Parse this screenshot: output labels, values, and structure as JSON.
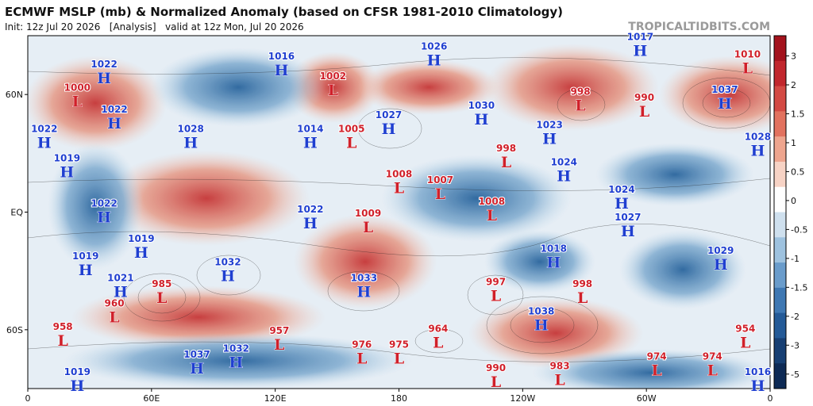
{
  "header": {
    "title": "ECMWF MSLP (mb) & Normalized Anomaly (based on CFSR 1981-2010 Climatology)",
    "init": "Init: 12z Jul 20 2026   [Analysis]   valid at 12z Mon, Jul 20 2026",
    "watermark": "TROPICALTIDBITS.COM"
  },
  "map": {
    "lat_ticks": [
      {
        "value": 60,
        "label": "60N"
      },
      {
        "value": 0,
        "label": "EQ"
      },
      {
        "value": -60,
        "label": "60S"
      }
    ],
    "lon_ticks": [
      {
        "value": 0,
        "label": "0"
      },
      {
        "value": 60,
        "label": "60E"
      },
      {
        "value": 120,
        "label": "120E"
      },
      {
        "value": 180,
        "label": "180"
      },
      {
        "value": 240,
        "label": "120W"
      },
      {
        "value": 300,
        "label": "60W"
      },
      {
        "value": 360,
        "label": "0"
      }
    ],
    "centers": [
      {
        "symbol": "H",
        "pressure": "1022",
        "lon": 37,
        "lat": 69
      },
      {
        "symbol": "L",
        "pressure": "1000",
        "lon": 24,
        "lat": 57
      },
      {
        "symbol": "H",
        "pressure": "1022",
        "lon": 8,
        "lat": 36
      },
      {
        "symbol": "H",
        "pressure": "1022",
        "lon": 42,
        "lat": 46
      },
      {
        "symbol": "H",
        "pressure": "1019",
        "lon": 19,
        "lat": 21
      },
      {
        "symbol": "H",
        "pressure": "1022",
        "lon": 37,
        "lat": -2
      },
      {
        "symbol": "H",
        "pressure": "1019",
        "lon": 28,
        "lat": -29
      },
      {
        "symbol": "H",
        "pressure": "1019",
        "lon": 55,
        "lat": -20
      },
      {
        "symbol": "H",
        "pressure": "1021",
        "lon": 45,
        "lat": -40
      },
      {
        "symbol": "L",
        "pressure": "985",
        "lon": 65,
        "lat": -43
      },
      {
        "symbol": "L",
        "pressure": "958",
        "lon": 17,
        "lat": -65
      },
      {
        "symbol": "L",
        "pressure": "960",
        "lon": 42,
        "lat": -53
      },
      {
        "symbol": "H",
        "pressure": "1028",
        "lon": 79,
        "lat": 36
      },
      {
        "symbol": "H",
        "pressure": "1016",
        "lon": 123,
        "lat": 73
      },
      {
        "symbol": "L",
        "pressure": "1002",
        "lon": 148,
        "lat": 63
      },
      {
        "symbol": "H",
        "pressure": "1032",
        "lon": 97,
        "lat": -32
      },
      {
        "symbol": "H",
        "pressure": "1022",
        "lon": 137,
        "lat": -5
      },
      {
        "symbol": "L",
        "pressure": "1005",
        "lon": 157,
        "lat": 36
      },
      {
        "symbol": "H",
        "pressure": "1014",
        "lon": 137,
        "lat": 36
      },
      {
        "symbol": "H",
        "pressure": "1027",
        "lon": 175,
        "lat": 43
      },
      {
        "symbol": "L",
        "pressure": "1009",
        "lon": 165,
        "lat": -7
      },
      {
        "symbol": "H",
        "pressure": "1033",
        "lon": 163,
        "lat": -40
      },
      {
        "symbol": "L",
        "pressure": "957",
        "lon": 122,
        "lat": -67
      },
      {
        "symbol": "L",
        "pressure": "976",
        "lon": 162,
        "lat": -74
      },
      {
        "symbol": "L",
        "pressure": "975",
        "lon": 180,
        "lat": -74
      },
      {
        "symbol": "H",
        "pressure": "1026",
        "lon": 197,
        "lat": 78
      },
      {
        "symbol": "L",
        "pressure": "1008",
        "lon": 180,
        "lat": 13
      },
      {
        "symbol": "L",
        "pressure": "1007",
        "lon": 200,
        "lat": 10
      },
      {
        "symbol": "L",
        "pressure": "1008",
        "lon": 225,
        "lat": -1
      },
      {
        "symbol": "H",
        "pressure": "1030",
        "lon": 220,
        "lat": 48
      },
      {
        "symbol": "L",
        "pressure": "998",
        "lon": 232,
        "lat": 26
      },
      {
        "symbol": "H",
        "pressure": "1023",
        "lon": 253,
        "lat": 38
      },
      {
        "symbol": "H",
        "pressure": "1024",
        "lon": 260,
        "lat": 19
      },
      {
        "symbol": "L",
        "pressure": "998",
        "lon": 268,
        "lat": 55
      },
      {
        "symbol": "L",
        "pressure": "990",
        "lon": 299,
        "lat": 52
      },
      {
        "symbol": "H",
        "pressure": "1017",
        "lon": 297,
        "lat": 83
      },
      {
        "symbol": "L",
        "pressure": "1010",
        "lon": 349,
        "lat": 74
      },
      {
        "symbol": "H",
        "pressure": "1037",
        "lon": 338,
        "lat": 56
      },
      {
        "symbol": "H",
        "pressure": "1028",
        "lon": 354,
        "lat": 32
      },
      {
        "symbol": "H",
        "pressure": "1024",
        "lon": 288,
        "lat": 5
      },
      {
        "symbol": "H",
        "pressure": "1027",
        "lon": 291,
        "lat": -9
      },
      {
        "symbol": "H",
        "pressure": "1018",
        "lon": 255,
        "lat": -25
      },
      {
        "symbol": "H",
        "pressure": "1029",
        "lon": 336,
        "lat": -26
      },
      {
        "symbol": "L",
        "pressure": "997",
        "lon": 227,
        "lat": -42
      },
      {
        "symbol": "L",
        "pressure": "998",
        "lon": 269,
        "lat": -43
      },
      {
        "symbol": "H",
        "pressure": "1038",
        "lon": 249,
        "lat": -57
      },
      {
        "symbol": "L",
        "pressure": "964",
        "lon": 199,
        "lat": -66
      },
      {
        "symbol": "L",
        "pressure": "990",
        "lon": 227,
        "lat": -86
      },
      {
        "symbol": "L",
        "pressure": "983",
        "lon": 258,
        "lat": -85
      },
      {
        "symbol": "L",
        "pressure": "974",
        "lon": 305,
        "lat": -80
      },
      {
        "symbol": "L",
        "pressure": "974",
        "lon": 332,
        "lat": -80
      },
      {
        "symbol": "L",
        "pressure": "954",
        "lon": 348,
        "lat": -66
      },
      {
        "symbol": "H",
        "pressure": "1016",
        "lon": 354,
        "lat": -88
      },
      {
        "symbol": "H",
        "pressure": "1037",
        "lon": 82,
        "lat": -79
      },
      {
        "symbol": "H",
        "pressure": "1032",
        "lon": 101,
        "lat": -76
      },
      {
        "symbol": "H",
        "pressure": "1019",
        "lon": 24,
        "lat": -88
      }
    ]
  },
  "colorbar": {
    "ticks": [
      3,
      2,
      1.5,
      1,
      0.5,
      0,
      -0.5,
      -1,
      -1.5,
      -2,
      -3,
      -5
    ]
  }
}
